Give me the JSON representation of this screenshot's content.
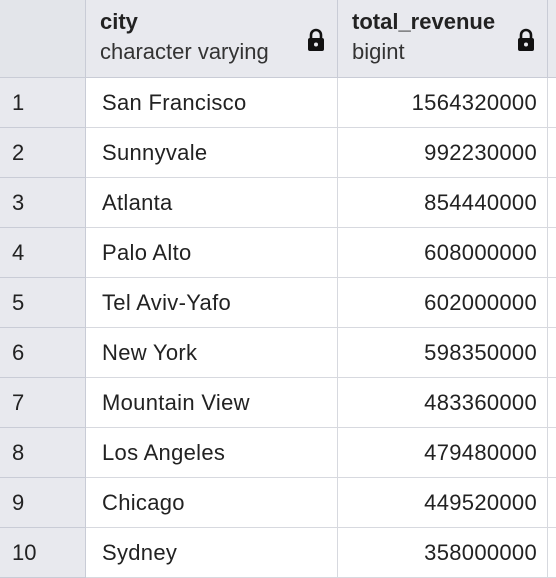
{
  "columns": [
    {
      "name": "city",
      "type": "character varying",
      "locked_icon": "lock-icon"
    },
    {
      "name": "total_revenue",
      "type": "bigint",
      "locked_icon": "lock-icon"
    }
  ],
  "rows": [
    {
      "num": "1",
      "city": "San Francisco",
      "total_revenue": "1564320000"
    },
    {
      "num": "2",
      "city": "Sunnyvale",
      "total_revenue": "992230000"
    },
    {
      "num": "3",
      "city": "Atlanta",
      "total_revenue": "854440000"
    },
    {
      "num": "4",
      "city": "Palo Alto",
      "total_revenue": "608000000"
    },
    {
      "num": "5",
      "city": "Tel Aviv-Yafo",
      "total_revenue": "602000000"
    },
    {
      "num": "6",
      "city": "New York",
      "total_revenue": "598350000"
    },
    {
      "num": "7",
      "city": "Mountain View",
      "total_revenue": "483360000"
    },
    {
      "num": "8",
      "city": "Los Angeles",
      "total_revenue": "479480000"
    },
    {
      "num": "9",
      "city": "Chicago",
      "total_revenue": "449520000"
    },
    {
      "num": "10",
      "city": "Sydney",
      "total_revenue": "358000000"
    }
  ]
}
